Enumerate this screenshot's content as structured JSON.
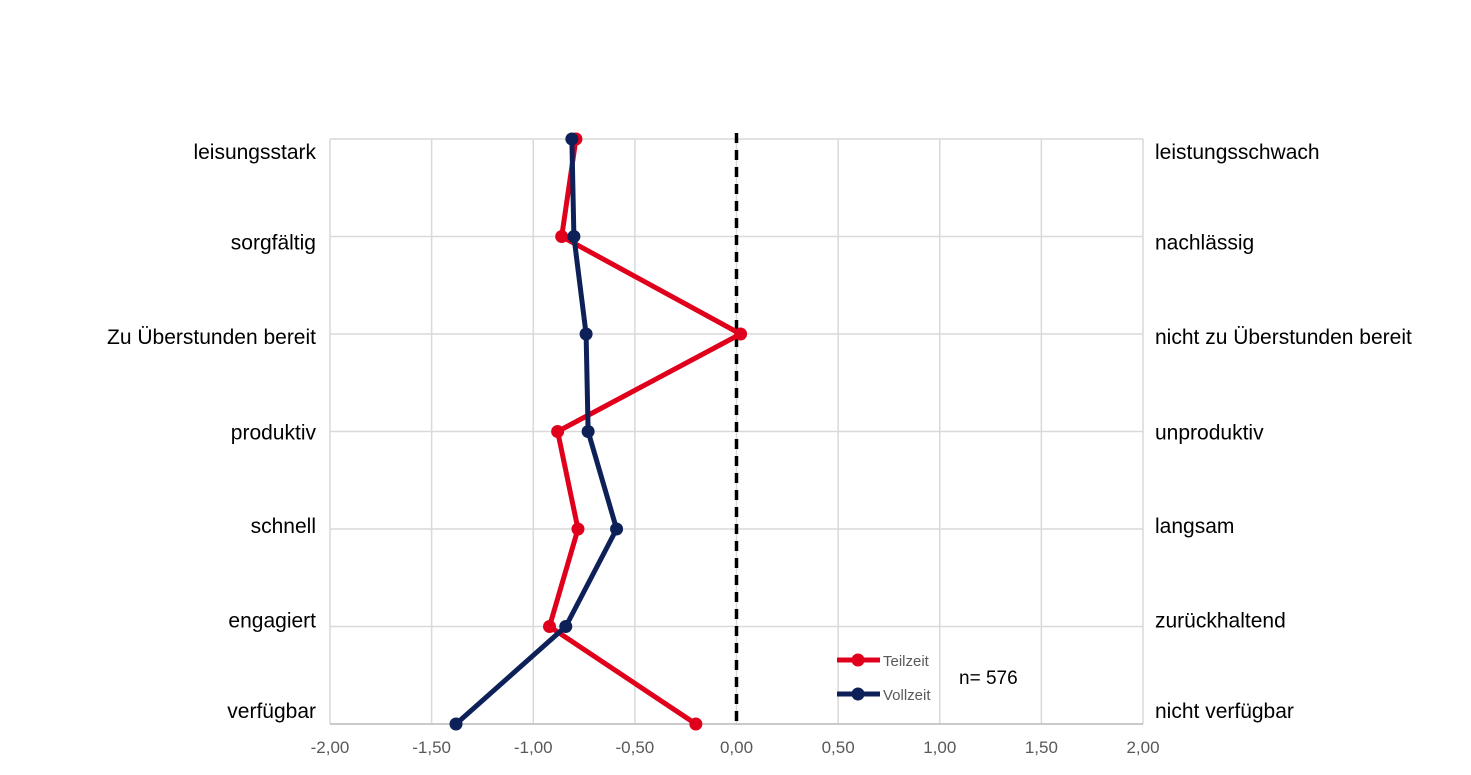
{
  "chart_data": {
    "type": "line",
    "orientation": "horizontal-profile",
    "x_ticks": [
      "-2,00",
      "-1,50",
      "-1,00",
      "-0,50",
      "0,00",
      "0,50",
      "1,00",
      "1,50",
      "2,00"
    ],
    "xlim": [
      -2,
      2
    ],
    "categories_left": [
      "leisungsstark",
      "sorgfältig",
      "Zu Überstunden bereit",
      "produktiv",
      "schnell",
      "engagiert",
      "verfügbar"
    ],
    "categories_right": [
      "leistungsschwach",
      "nachlässig",
      "nicht zu Überstunden bereit",
      "unproduktiv",
      "langsam",
      "zurückhaltend",
      "nicht verfügbar"
    ],
    "series": [
      {
        "name": "Teilzeit",
        "color": "#e0001b",
        "values": [
          -0.79,
          -0.86,
          0.02,
          -0.88,
          -0.78,
          -0.92,
          -0.2
        ]
      },
      {
        "name": "Vollzeit",
        "color": "#0d2158",
        "values": [
          -0.81,
          -0.8,
          -0.74,
          -0.73,
          -0.59,
          -0.84,
          -1.38
        ]
      }
    ],
    "reference_line": 0,
    "grid": true,
    "legend_position": "bottom-right",
    "note": "n= 576"
  }
}
